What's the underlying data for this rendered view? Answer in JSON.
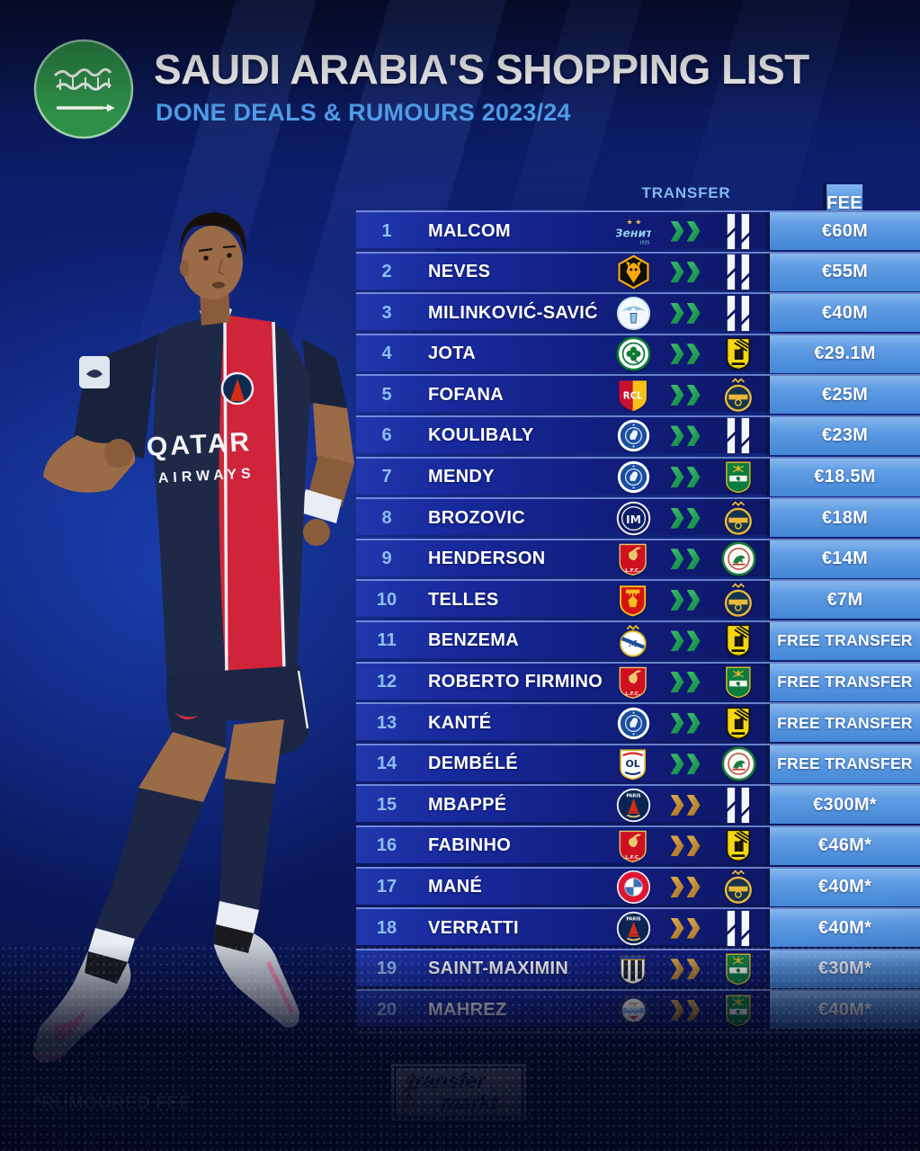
{
  "header": {
    "title": "SAUDI ARABIA'S SHOPPING LIST",
    "subtitle": "DONE DEALS & RUMOURS 2023/24",
    "flag_name": "saudi-arabia-flag"
  },
  "table_headers": {
    "transfer": "TRANSFER",
    "fee": "FEE"
  },
  "footer": {
    "note": "*RUMOURED FEE",
    "logo_line1": "transfer",
    "logo_line2": "markt"
  },
  "colors": {
    "row_navy": "#111e7d",
    "fee_blue": "#4487d7",
    "done_arrow_green": "#1f9e54",
    "rumour_arrow_gold": "#c9973f",
    "subtitle_blue": "#4f9ce8",
    "rank_blue": "#8dbdf1",
    "flag_green": "#2e8f47"
  },
  "chart_data": {
    "type": "table",
    "title": "SAUDI ARABIA'S SHOPPING LIST",
    "subtitle": "DONE DEALS & RUMOURS 2023/24",
    "columns_visible": [
      "TRANSFER",
      "FEE"
    ],
    "legend": {
      "green_arrows": "done deal",
      "gold_arrows": "rumour",
      "asterisk": "rumoured fee"
    },
    "note": "*RUMOURED FEE",
    "rows": [
      {
        "rank": "1",
        "player": "MALCOM",
        "from": "Zenit St. Petersburg",
        "from_key": "zenit",
        "to": "Al-Hilal",
        "to_key": "al-hilal",
        "fee": "€60M",
        "deal": "done"
      },
      {
        "rank": "2",
        "player": "NEVES",
        "from": "Wolverhampton Wanderers",
        "from_key": "wolves",
        "to": "Al-Hilal",
        "to_key": "al-hilal",
        "fee": "€55M",
        "deal": "done"
      },
      {
        "rank": "3",
        "player": "MILINKOVIĆ-SAVIĆ",
        "from": "Lazio",
        "from_key": "lazio",
        "to": "Al-Hilal",
        "to_key": "al-hilal",
        "fee": "€40M",
        "deal": "done"
      },
      {
        "rank": "4",
        "player": "JOTA",
        "from": "Celtic",
        "from_key": "celtic",
        "to": "Al-Ittihad",
        "to_key": "al-ittihad",
        "fee": "€29.1M",
        "deal": "done"
      },
      {
        "rank": "5",
        "player": "FOFANA",
        "from": "RC Lens",
        "from_key": "lens",
        "to": "Al-Nassr",
        "to_key": "al-nassr",
        "fee": "€25M",
        "deal": "done"
      },
      {
        "rank": "6",
        "player": "KOULIBALY",
        "from": "Chelsea",
        "from_key": "chelsea",
        "to": "Al-Hilal",
        "to_key": "al-hilal",
        "fee": "€23M",
        "deal": "done"
      },
      {
        "rank": "7",
        "player": "MENDY",
        "from": "Chelsea",
        "from_key": "chelsea",
        "to": "Al-Ahli",
        "to_key": "al-ahli",
        "fee": "€18.5M",
        "deal": "done"
      },
      {
        "rank": "8",
        "player": "BROZOVIC",
        "from": "Inter Milan",
        "from_key": "inter",
        "to": "Al-Nassr",
        "to_key": "al-nassr",
        "fee": "€18M",
        "deal": "done"
      },
      {
        "rank": "9",
        "player": "HENDERSON",
        "from": "Liverpool",
        "from_key": "liverpool",
        "to": "Al-Ettifaq",
        "to_key": "al-ettifaq",
        "fee": "€14M",
        "deal": "done"
      },
      {
        "rank": "10",
        "player": "TELLES",
        "from": "Manchester United",
        "from_key": "man-utd",
        "to": "Al-Nassr",
        "to_key": "al-nassr",
        "fee": "€7M",
        "deal": "done"
      },
      {
        "rank": "11",
        "player": "BENZEMA",
        "from": "Real Madrid",
        "from_key": "real-madrid",
        "to": "Al-Ittihad",
        "to_key": "al-ittihad",
        "fee": "FREE TRANSFER",
        "deal": "done"
      },
      {
        "rank": "12",
        "player": "ROBERTO FIRMINO",
        "from": "Liverpool",
        "from_key": "liverpool",
        "to": "Al-Ahli",
        "to_key": "al-ahli",
        "fee": "FREE TRANSFER",
        "deal": "done"
      },
      {
        "rank": "13",
        "player": "KANTÉ",
        "from": "Chelsea",
        "from_key": "chelsea",
        "to": "Al-Ittihad",
        "to_key": "al-ittihad",
        "fee": "FREE TRANSFER",
        "deal": "done"
      },
      {
        "rank": "14",
        "player": "DEMBÉLÉ",
        "from": "Olympique Lyon",
        "from_key": "lyon",
        "to": "Al-Ettifaq",
        "to_key": "al-ettifaq",
        "fee": "FREE TRANSFER",
        "deal": "done"
      },
      {
        "rank": "15",
        "player": "MBAPPÉ",
        "from": "Paris Saint-Germain",
        "from_key": "psg",
        "to": "Al-Hilal",
        "to_key": "al-hilal",
        "fee": "€300M*",
        "deal": "rumour"
      },
      {
        "rank": "16",
        "player": "FABINHO",
        "from": "Liverpool",
        "from_key": "liverpool",
        "to": "Al-Ittihad",
        "to_key": "al-ittihad",
        "fee": "€46M*",
        "deal": "rumour"
      },
      {
        "rank": "17",
        "player": "MANÉ",
        "from": "Bayern Munich",
        "from_key": "bayern",
        "to": "Al-Nassr",
        "to_key": "al-nassr",
        "fee": "€40M*",
        "deal": "rumour"
      },
      {
        "rank": "18",
        "player": "VERRATTI",
        "from": "Paris Saint-Germain",
        "from_key": "psg",
        "to": "Al-Hilal",
        "to_key": "al-hilal",
        "fee": "€40M*",
        "deal": "rumour"
      },
      {
        "rank": "19",
        "player": "SAINT-MAXIMIN",
        "from": "Newcastle United",
        "from_key": "newcastle",
        "to": "Al-Ahli",
        "to_key": "al-ahli",
        "fee": "€30M*",
        "deal": "rumour"
      },
      {
        "rank": "20",
        "player": "MAHREZ",
        "from": "Manchester City",
        "from_key": "man-city",
        "to": "Al-Ahli",
        "to_key": "al-ahli",
        "fee": "€40M*",
        "deal": "rumour"
      }
    ]
  }
}
